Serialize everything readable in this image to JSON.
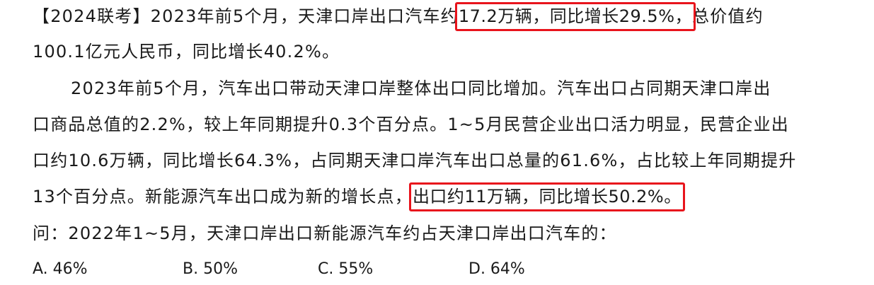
{
  "passage": {
    "line1": {
      "before": "【2024联考】2023年前5个月，天津口岸出口汽车约",
      "highlight": "17.2万辆，同比增长29.5%，",
      "after": "总价值约"
    },
    "line2": "100.1亿元人民币，同比增长40.2%。",
    "line3": "2023年前5个月，汽车出口带动天津口岸整体出口同比增加。汽车出口占同期天津口岸出",
    "line4": "口商品总值的2.2%，较上年同期提升0.3个百分点。1~5月民营企业出口活力明显，民营企业出",
    "line5": "口约10.6万辆，同比增长64.3%，占同期天津口岸汽车出口总量的61.6%，占比较上年同期提升",
    "line6": {
      "before": "13个百分点。新能源汽车出口成为新的增长点，",
      "highlight": "出口约11万辆，同比增长50.2%。"
    },
    "question": "问：2022年1~5月，天津口岸出口新能源汽车约占天津口岸出口汽车的："
  },
  "options": [
    {
      "label": "A. 46%"
    },
    {
      "label": "B. 50%"
    },
    {
      "label": "C. 55%"
    },
    {
      "label": "D. 64%"
    }
  ],
  "colors": {
    "highlight_border": "#e8141c",
    "text": "#1a1a1a",
    "background": "#ffffff"
  }
}
